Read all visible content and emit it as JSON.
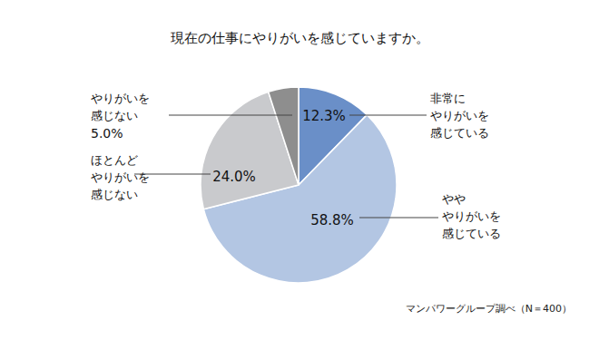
{
  "chart_data": {
    "type": "pie",
    "title": "現在の仕事にやりがいを感じていますか。",
    "categories": [
      [
        "非常に",
        "やりがいを",
        "感じている"
      ],
      [
        "やや",
        "やりがいを",
        "感じている"
      ],
      [
        "ほとんど",
        "やりがいを",
        "感じない"
      ],
      [
        "やりがいを",
        "感じない"
      ]
    ],
    "values": [
      12.3,
      58.8,
      24.0,
      5.0
    ],
    "value_labels": [
      "12.3%",
      "58.8%",
      "24.0%",
      "5.0%"
    ],
    "colors": [
      "#6a8fc8",
      "#b3c6e3",
      "#c9cacd",
      "#8e8e8e"
    ],
    "data_labels": true,
    "annotations": [
      "マンパワーグループ調べ（N＝400）"
    ]
  }
}
